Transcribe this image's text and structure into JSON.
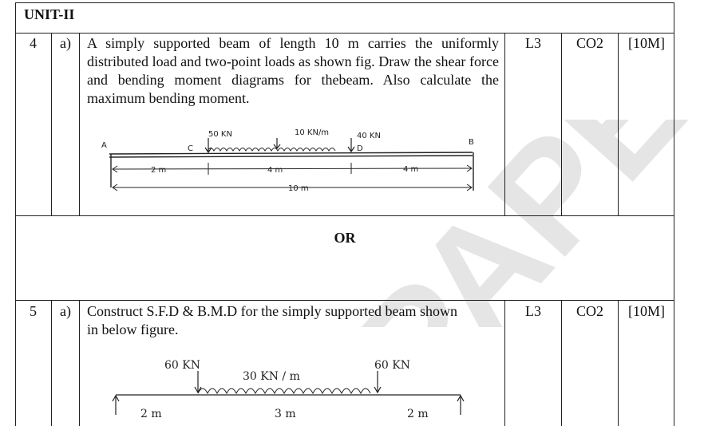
{
  "unit": {
    "title": "UNIT-II"
  },
  "questions": [
    {
      "number": "4",
      "part": "a)",
      "text": "A simply supported beam of length 10 m carries the uniformly distributed load and two-point loads as shown fig. Draw the shear force and bending moment diagrams for thebeam. Also calculate the maximum bending moment.",
      "level": "L3",
      "co": "CO2",
      "marks": "[10M]",
      "figure": {
        "labels": {
          "point_a": "A",
          "point_b": "B",
          "point_c": "C",
          "point_d": "D",
          "load_c": "50 KN",
          "udl": "10 KN/m",
          "load_d": "40 KN",
          "span_ac": "2 m",
          "span_cd": "4 m",
          "span_db": "4 m",
          "total": "10 m"
        }
      }
    },
    {
      "number": "5",
      "part": "a)",
      "text": "Construct S.F.D & B.M.D for the simply supported beam shown in below figure.",
      "level": "L3",
      "co": "CO2",
      "marks": "[10M]",
      "figure": {
        "labels": {
          "load_left": "60 KN",
          "udl": "30 KN / m",
          "load_right": "60 KN",
          "span_left": "2 m",
          "span_mid": "3 m",
          "span_right": "2 m"
        }
      }
    }
  ],
  "separator": {
    "label": "OR"
  },
  "watermark": {
    "text": "PAPER"
  }
}
